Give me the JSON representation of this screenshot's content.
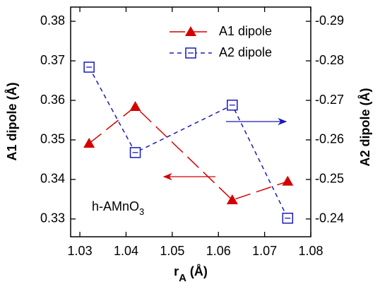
{
  "chart_data": {
    "type": "line",
    "x": [
      1.032,
      1.042,
      1.063,
      1.075
    ],
    "series": [
      {
        "name": "A1 dipole",
        "color": "#d40000",
        "marker": "triangle",
        "values": [
          0.3491,
          0.3584,
          0.3348,
          0.3395
        ]
      },
      {
        "name": "A2 dipole",
        "color": "#1a1ab8",
        "marker": "square",
        "axis": "y2",
        "values": [
          -0.2784,
          -0.2568,
          -0.2688,
          -0.2402
        ]
      }
    ],
    "xlim": [
      1.028,
      1.08
    ],
    "xticks": [
      1.03,
      1.04,
      1.05,
      1.06,
      1.07,
      1.08
    ],
    "ylim": [
      0.3255,
      0.3836
    ],
    "yticks": [
      0.33,
      0.34,
      0.35,
      0.36,
      0.37,
      0.38
    ],
    "y2lim": [
      -0.2355,
      -0.2936
    ],
    "y2ticks": [
      -0.29,
      -0.28,
      -0.27,
      -0.26,
      -0.25,
      -0.24
    ],
    "xlabel": {
      "main": "r",
      "sub": "A",
      "unit": " (Å)"
    },
    "ylabel": "A1 dipole  (Å)",
    "y2label": "A2 dipole (Å)",
    "annotation": {
      "main": "h-AMnO",
      "sub": "3"
    },
    "legend": "upper right"
  }
}
